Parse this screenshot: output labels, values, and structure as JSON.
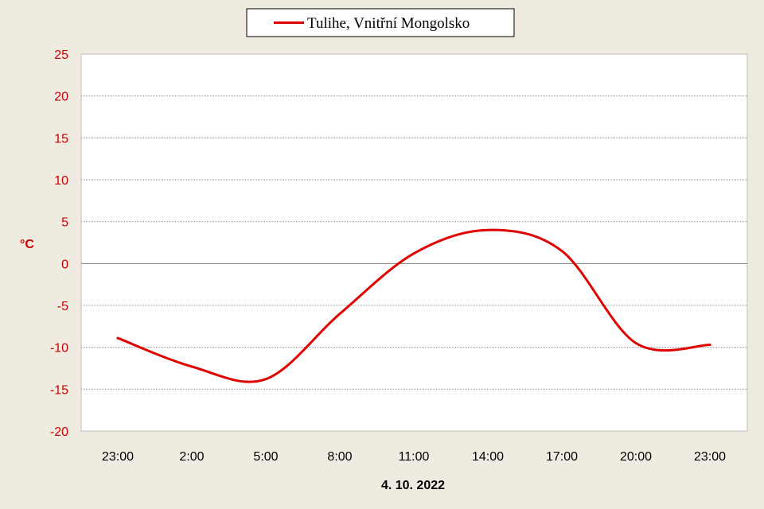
{
  "chart_data": {
    "type": "line",
    "title": "",
    "xlabel": "4. 10. 2022",
    "ylabel": "°C",
    "ylim": [
      -20,
      25
    ],
    "yticks": [
      25,
      20,
      15,
      10,
      5,
      0,
      -5,
      -10,
      -15,
      -20
    ],
    "grid": true,
    "legend_position": "top-center",
    "categories": [
      "23:00",
      "2:00",
      "5:00",
      "8:00",
      "11:00",
      "14:00",
      "17:00",
      "20:00",
      "23:00"
    ],
    "series": [
      {
        "name": "Tulihe, Vnitřní Mongolsko",
        "color": "#e00000",
        "values": [
          -8.9,
          -12.3,
          -13.8,
          -6.0,
          1.2,
          4.0,
          1.5,
          -9.5,
          -9.7
        ]
      }
    ],
    "colors": {
      "background": "#efebe0",
      "plot_area": "#ffffff",
      "axis_text": "#cc0000",
      "grid": "#808080"
    }
  }
}
